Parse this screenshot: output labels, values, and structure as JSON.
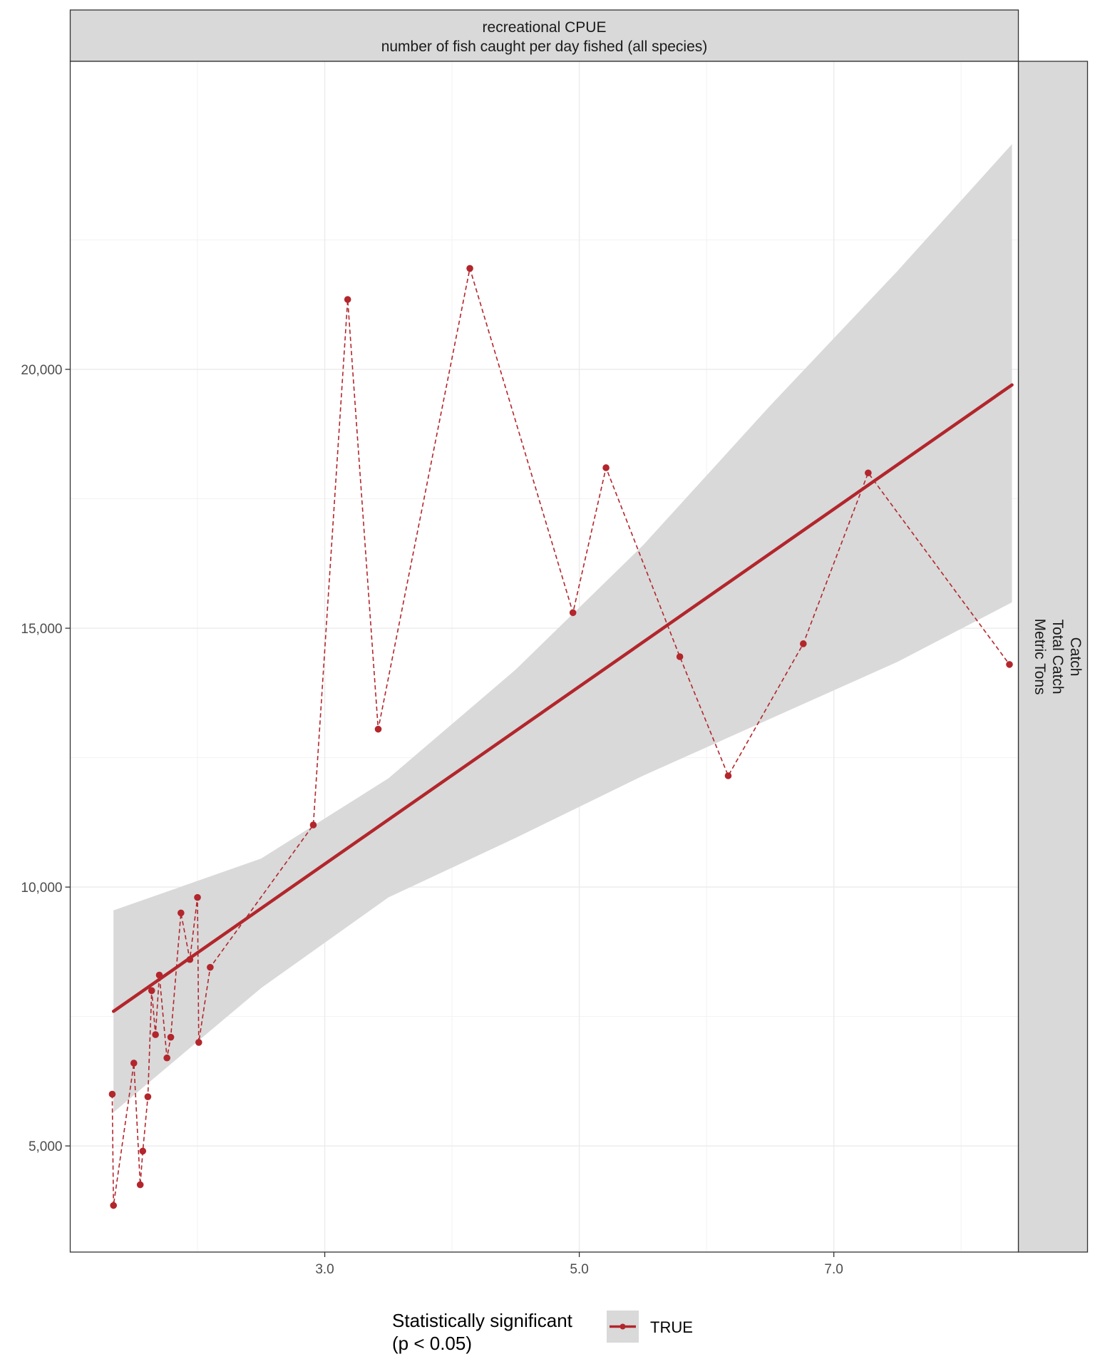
{
  "chart_data": {
    "type": "line",
    "facet_title": {
      "line1": "recreational CPUE",
      "line2": "number of fish caught per day fished (all species)"
    },
    "row_strip": {
      "line1": "Catch",
      "line2": "Total Catch",
      "line3": "Metric Tons"
    },
    "xlim": [
      1.0,
      8.45
    ],
    "ylim": [
      2950,
      25950
    ],
    "x_ticks": [
      3,
      5,
      7
    ],
    "x_tick_labels": [
      "3.0",
      "5.0",
      "7.0"
    ],
    "y_ticks": [
      5000,
      10000,
      15000,
      20000
    ],
    "y_tick_labels": [
      "5,000",
      "10,000",
      "15,000",
      "20,000"
    ],
    "grid": true,
    "series": [
      {
        "values": [
          {
            "x": 1.33,
            "y": 6000
          },
          {
            "x": 1.34,
            "y": 3850
          },
          {
            "x": 1.5,
            "y": 6600
          },
          {
            "x": 1.55,
            "y": 4250
          },
          {
            "x": 1.57,
            "y": 4900
          },
          {
            "x": 1.61,
            "y": 5950
          },
          {
            "x": 1.64,
            "y": 8000
          },
          {
            "x": 1.67,
            "y": 7150
          },
          {
            "x": 1.7,
            "y": 8300
          },
          {
            "x": 1.76,
            "y": 6700
          },
          {
            "x": 1.79,
            "y": 7100
          },
          {
            "x": 1.87,
            "y": 9500
          },
          {
            "x": 1.94,
            "y": 8600
          },
          {
            "x": 2.0,
            "y": 9800
          },
          {
            "x": 2.01,
            "y": 7000
          },
          {
            "x": 2.1,
            "y": 8450
          },
          {
            "x": 2.91,
            "y": 11200
          },
          {
            "x": 3.18,
            "y": 21350
          },
          {
            "x": 3.42,
            "y": 13050
          },
          {
            "x": 4.14,
            "y": 21950
          },
          {
            "x": 4.95,
            "y": 15300
          },
          {
            "x": 5.21,
            "y": 18100
          },
          {
            "x": 5.79,
            "y": 14450
          },
          {
            "x": 6.17,
            "y": 12150
          },
          {
            "x": 6.76,
            "y": 14700
          },
          {
            "x": 7.27,
            "y": 18000
          },
          {
            "x": 8.38,
            "y": 14300
          }
        ]
      }
    ],
    "trend": {
      "x": [
        1.34,
        8.4
      ],
      "y": [
        7600,
        19700
      ]
    },
    "ribbon": {
      "x": [
        1.34,
        2.5,
        3.5,
        4.5,
        5.5,
        6.5,
        7.5,
        8.4
      ],
      "lower": [
        5650,
        8050,
        9800,
        10950,
        12150,
        13250,
        14350,
        15500
      ],
      "upper": [
        9550,
        10550,
        12100,
        14200,
        16600,
        19300,
        21900,
        24350
      ]
    },
    "legend": {
      "title_line1": "Statistically significant",
      "title_line2": "(p < 0.05)",
      "label": "TRUE",
      "placement": "bottom"
    },
    "colors": {
      "line": "#b2262c",
      "points": "#b2262c",
      "ribbon": "#d9d9d9",
      "strip": "#d9d9d9",
      "grid": "#ebebeb"
    }
  }
}
